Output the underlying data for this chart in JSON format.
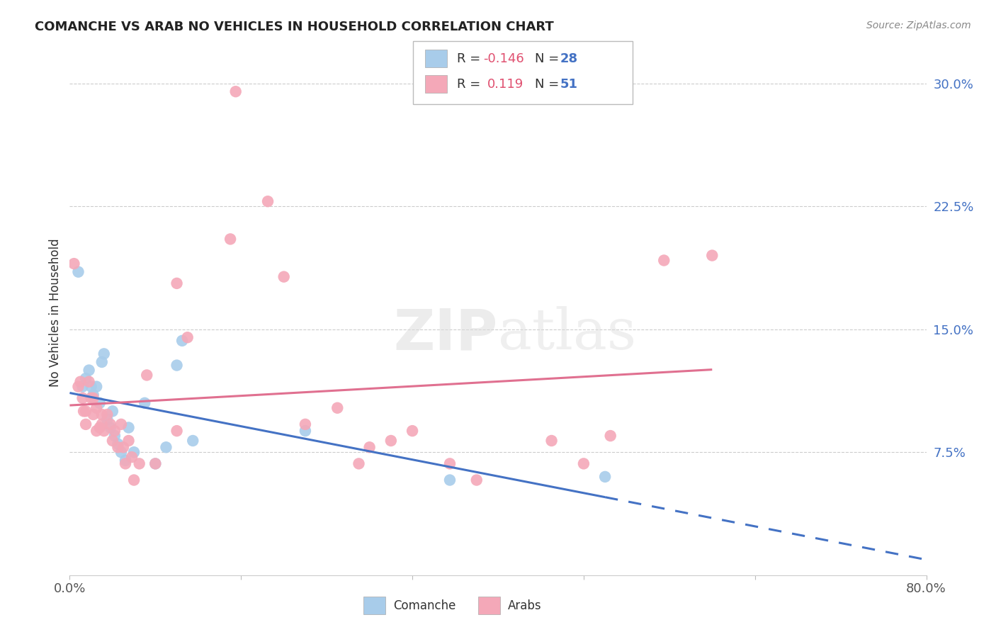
{
  "title": "COMANCHE VS ARAB NO VEHICLES IN HOUSEHOLD CORRELATION CHART",
  "source": "Source: ZipAtlas.com",
  "ylabel": "No Vehicles in Household",
  "xlim": [
    0.0,
    0.8
  ],
  "ylim": [
    0.0,
    0.32
  ],
  "ytick_vals": [
    0.075,
    0.15,
    0.225,
    0.3
  ],
  "ytick_labels": [
    "7.5%",
    "15.0%",
    "22.5%",
    "30.0%"
  ],
  "comanche_color": "#A8CCEA",
  "arab_color": "#F4A8B8",
  "trend_comanche_color": "#4472C4",
  "trend_arab_color": "#E07090",
  "comanche_points": [
    [
      0.008,
      0.185
    ],
    [
      0.012,
      0.115
    ],
    [
      0.015,
      0.12
    ],
    [
      0.018,
      0.125
    ],
    [
      0.02,
      0.115
    ],
    [
      0.022,
      0.11
    ],
    [
      0.025,
      0.115
    ],
    [
      0.028,
      0.105
    ],
    [
      0.03,
      0.13
    ],
    [
      0.032,
      0.135
    ],
    [
      0.035,
      0.095
    ],
    [
      0.038,
      0.09
    ],
    [
      0.04,
      0.1
    ],
    [
      0.042,
      0.085
    ],
    [
      0.045,
      0.08
    ],
    [
      0.048,
      0.075
    ],
    [
      0.052,
      0.07
    ],
    [
      0.055,
      0.09
    ],
    [
      0.06,
      0.075
    ],
    [
      0.07,
      0.105
    ],
    [
      0.08,
      0.068
    ],
    [
      0.09,
      0.078
    ],
    [
      0.1,
      0.128
    ],
    [
      0.105,
      0.143
    ],
    [
      0.115,
      0.082
    ],
    [
      0.22,
      0.088
    ],
    [
      0.355,
      0.058
    ],
    [
      0.5,
      0.06
    ]
  ],
  "arab_points": [
    [
      0.004,
      0.19
    ],
    [
      0.008,
      0.115
    ],
    [
      0.01,
      0.118
    ],
    [
      0.012,
      0.108
    ],
    [
      0.013,
      0.1
    ],
    [
      0.015,
      0.1
    ],
    [
      0.015,
      0.092
    ],
    [
      0.018,
      0.118
    ],
    [
      0.02,
      0.108
    ],
    [
      0.022,
      0.108
    ],
    [
      0.022,
      0.098
    ],
    [
      0.025,
      0.102
    ],
    [
      0.025,
      0.088
    ],
    [
      0.028,
      0.09
    ],
    [
      0.03,
      0.098
    ],
    [
      0.03,
      0.092
    ],
    [
      0.032,
      0.088
    ],
    [
      0.035,
      0.098
    ],
    [
      0.038,
      0.092
    ],
    [
      0.04,
      0.082
    ],
    [
      0.042,
      0.088
    ],
    [
      0.045,
      0.078
    ],
    [
      0.048,
      0.092
    ],
    [
      0.05,
      0.078
    ],
    [
      0.052,
      0.068
    ],
    [
      0.055,
      0.082
    ],
    [
      0.058,
      0.072
    ],
    [
      0.06,
      0.058
    ],
    [
      0.065,
      0.068
    ],
    [
      0.072,
      0.122
    ],
    [
      0.08,
      0.068
    ],
    [
      0.1,
      0.178
    ],
    [
      0.1,
      0.088
    ],
    [
      0.11,
      0.145
    ],
    [
      0.15,
      0.205
    ],
    [
      0.155,
      0.295
    ],
    [
      0.185,
      0.228
    ],
    [
      0.2,
      0.182
    ],
    [
      0.22,
      0.092
    ],
    [
      0.25,
      0.102
    ],
    [
      0.27,
      0.068
    ],
    [
      0.28,
      0.078
    ],
    [
      0.3,
      0.082
    ],
    [
      0.32,
      0.088
    ],
    [
      0.355,
      0.068
    ],
    [
      0.38,
      0.058
    ],
    [
      0.45,
      0.082
    ],
    [
      0.48,
      0.068
    ],
    [
      0.505,
      0.085
    ],
    [
      0.555,
      0.192
    ],
    [
      0.6,
      0.195
    ]
  ]
}
